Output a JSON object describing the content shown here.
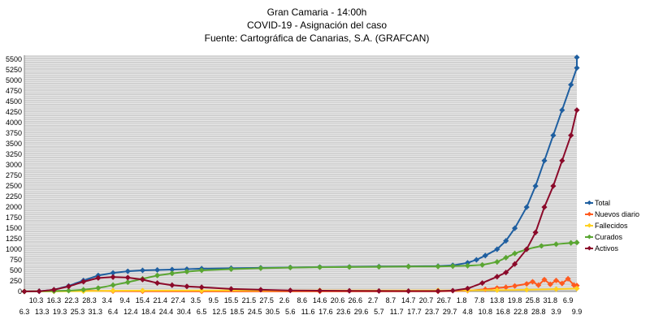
{
  "chart_data": {
    "type": "line",
    "title": "Gran Camaria - 14:00h",
    "subtitle": "COVID-19 - Asignación del caso",
    "source": "Fuente: Cartográfica de Canarias, S.A. (GRAFCAN)",
    "ylim": [
      0,
      5600
    ],
    "y_ticks": [
      0,
      250,
      500,
      750,
      1000,
      1250,
      1500,
      1750,
      2000,
      2250,
      2500,
      2750,
      3000,
      3250,
      3500,
      3750,
      4000,
      4250,
      4500,
      4750,
      5000,
      5250,
      5500
    ],
    "x_tick_labels_upper": [
      "10.3",
      "16.3",
      "22.3",
      "28.3",
      "3.4",
      "9.4",
      "15.4",
      "21.4",
      "27.4",
      "3.5",
      "9.5",
      "15.5",
      "21.5",
      "27.5",
      "2.6",
      "8.6",
      "14.6",
      "20.6",
      "26.6",
      "2.7",
      "8.7",
      "14.7",
      "20.7",
      "26.7",
      "1.8",
      "7.8",
      "13.8",
      "19.8",
      "25.8",
      "31.8",
      "6.9"
    ],
    "x_tick_labels_lower": [
      "6.3",
      "13.3",
      "19.3",
      "25.3",
      "31.3",
      "6.4",
      "12.4",
      "18.4",
      "24.4",
      "30.4",
      "6.5",
      "12.5",
      "18.5",
      "24.5",
      "30.5",
      "5.6",
      "11.6",
      "17.6",
      "23.6",
      "29.6",
      "5.7",
      "11.7",
      "17.7",
      "23.7",
      "29.7",
      "4.8",
      "10.8",
      "16.8",
      "22.8",
      "28.8",
      "3.9",
      "9.9"
    ],
    "x_day_range": [
      0,
      187
    ],
    "grid": true,
    "legend_position": "right",
    "series": [
      {
        "name": "Total",
        "color": "#1f5fa0",
        "points": [
          [
            0,
            0
          ],
          [
            5,
            5
          ],
          [
            10,
            40
          ],
          [
            15,
            130
          ],
          [
            20,
            260
          ],
          [
            25,
            380
          ],
          [
            30,
            440
          ],
          [
            35,
            480
          ],
          [
            40,
            500
          ],
          [
            45,
            510
          ],
          [
            50,
            520
          ],
          [
            55,
            530
          ],
          [
            60,
            540
          ],
          [
            70,
            550
          ],
          [
            80,
            560
          ],
          [
            90,
            570
          ],
          [
            100,
            580
          ],
          [
            110,
            585
          ],
          [
            120,
            590
          ],
          [
            130,
            595
          ],
          [
            140,
            600
          ],
          [
            145,
            620
          ],
          [
            150,
            680
          ],
          [
            153,
            750
          ],
          [
            156,
            850
          ],
          [
            160,
            1000
          ],
          [
            163,
            1200
          ],
          [
            166,
            1500
          ],
          [
            170,
            2000
          ],
          [
            173,
            2500
          ],
          [
            176,
            3100
          ],
          [
            179,
            3700
          ],
          [
            182,
            4300
          ],
          [
            185,
            4900
          ],
          [
            187,
            5300
          ],
          [
            188,
            5550
          ]
        ]
      },
      {
        "name": "Nuevos diario",
        "color": "#ff5a1f",
        "points": [
          [
            0,
            0
          ],
          [
            10,
            10
          ],
          [
            20,
            20
          ],
          [
            30,
            8
          ],
          [
            40,
            5
          ],
          [
            60,
            2
          ],
          [
            100,
            1
          ],
          [
            140,
            2
          ],
          [
            150,
            20
          ],
          [
            156,
            50
          ],
          [
            160,
            80
          ],
          [
            163,
            100
          ],
          [
            166,
            130
          ],
          [
            170,
            180
          ],
          [
            172,
            230
          ],
          [
            174,
            150
          ],
          [
            176,
            280
          ],
          [
            178,
            170
          ],
          [
            180,
            260
          ],
          [
            182,
            190
          ],
          [
            184,
            300
          ],
          [
            186,
            150
          ],
          [
            188,
            140
          ]
        ]
      },
      {
        "name": "Fallecidos",
        "color": "#ffd11f",
        "points": [
          [
            0,
            0
          ],
          [
            10,
            2
          ],
          [
            20,
            8
          ],
          [
            30,
            20
          ],
          [
            40,
            22
          ],
          [
            60,
            24
          ],
          [
            100,
            25
          ],
          [
            140,
            25
          ],
          [
            150,
            26
          ],
          [
            160,
            30
          ],
          [
            170,
            40
          ],
          [
            180,
            55
          ],
          [
            188,
            70
          ]
        ]
      },
      {
        "name": "Curados",
        "color": "#5aa632",
        "points": [
          [
            0,
            0
          ],
          [
            10,
            10
          ],
          [
            15,
            20
          ],
          [
            20,
            40
          ],
          [
            25,
            80
          ],
          [
            30,
            150
          ],
          [
            35,
            220
          ],
          [
            40,
            300
          ],
          [
            45,
            380
          ],
          [
            50,
            430
          ],
          [
            55,
            470
          ],
          [
            60,
            500
          ],
          [
            70,
            530
          ],
          [
            80,
            550
          ],
          [
            90,
            565
          ],
          [
            100,
            575
          ],
          [
            110,
            580
          ],
          [
            120,
            585
          ],
          [
            130,
            590
          ],
          [
            140,
            592
          ],
          [
            145,
            600
          ],
          [
            150,
            610
          ],
          [
            155,
            630
          ],
          [
            160,
            700
          ],
          [
            163,
            800
          ],
          [
            166,
            900
          ],
          [
            170,
            1000
          ],
          [
            175,
            1080
          ],
          [
            180,
            1120
          ],
          [
            185,
            1150
          ],
          [
            188,
            1160
          ]
        ]
      },
      {
        "name": "Activos",
        "color": "#8b0a2a",
        "points": [
          [
            0,
            0
          ],
          [
            5,
            5
          ],
          [
            10,
            40
          ],
          [
            15,
            120
          ],
          [
            20,
            230
          ],
          [
            25,
            320
          ],
          [
            30,
            340
          ],
          [
            35,
            330
          ],
          [
            40,
            280
          ],
          [
            45,
            200
          ],
          [
            50,
            150
          ],
          [
            55,
            120
          ],
          [
            60,
            100
          ],
          [
            70,
            60
          ],
          [
            80,
            40
          ],
          [
            90,
            25
          ],
          [
            100,
            20
          ],
          [
            110,
            15
          ],
          [
            120,
            12
          ],
          [
            130,
            10
          ],
          [
            140,
            10
          ],
          [
            145,
            20
          ],
          [
            150,
            70
          ],
          [
            155,
            200
          ],
          [
            160,
            350
          ],
          [
            163,
            450
          ],
          [
            166,
            650
          ],
          [
            170,
            1000
          ],
          [
            173,
            1400
          ],
          [
            176,
            2000
          ],
          [
            179,
            2500
          ],
          [
            182,
            3100
          ],
          [
            185,
            3700
          ],
          [
            188,
            4300
          ]
        ]
      }
    ]
  }
}
